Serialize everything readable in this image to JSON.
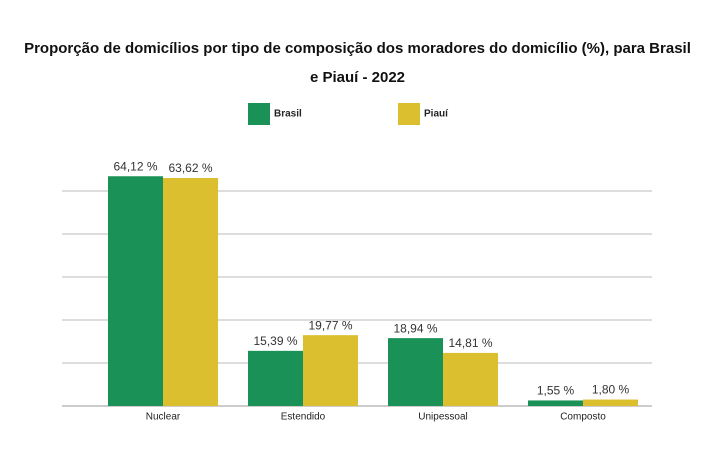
{
  "chart_data": {
    "type": "bar",
    "title": "Proporção de domicílios por tipo de composição dos moradores do domicílio (%), para Brasil e Piauí - 2022",
    "categories": [
      "Nuclear",
      "Estendido",
      "Unipessoal",
      "Composto"
    ],
    "series": [
      {
        "name": "Brasil",
        "color": "#1a9157",
        "values": [
          64.12,
          15.39,
          18.94,
          1.55
        ],
        "value_labels": [
          "64,12 %",
          "15,39 %",
          "18,94 %",
          "1,55 %"
        ]
      },
      {
        "name": "Piauí",
        "color": "#dcbf2e",
        "values": [
          63.62,
          19.77,
          14.81,
          1.8
        ],
        "value_labels": [
          "63,62 %",
          "19,77 %",
          "14,81 %",
          "1,80 %"
        ]
      }
    ],
    "ylim": [
      0,
      72
    ],
    "yticks": [
      0,
      12,
      24,
      36,
      48,
      60
    ],
    "grid": true,
    "legend": "top"
  }
}
